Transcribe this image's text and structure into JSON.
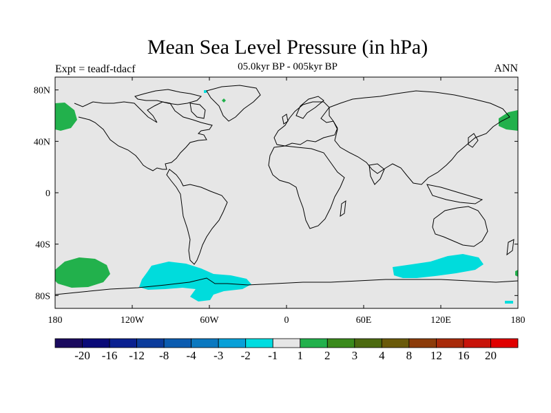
{
  "title": "Mean Sea Level Pressure (in hPa)",
  "subtitle": "05.0kyr BP - 005kyr BP",
  "left_label": "Expt = teadf-tdacf",
  "right_label": "ANN",
  "colors": {
    "land_ocean_background": "#e6e6e6",
    "coastline": "#000000",
    "neg_anomaly": "#00dcdc",
    "pos_anomaly": "#22b14c"
  },
  "axes": {
    "x_ticks": [
      {
        "lon": -180,
        "label": "180"
      },
      {
        "lon": -120,
        "label": "120W"
      },
      {
        "lon": -60,
        "label": "60W"
      },
      {
        "lon": 0,
        "label": "0"
      },
      {
        "lon": 60,
        "label": "60E"
      },
      {
        "lon": 120,
        "label": "120E"
      },
      {
        "lon": 180,
        "label": "180"
      }
    ],
    "y_ticks": [
      {
        "lat": 80,
        "label": "80N"
      },
      {
        "lat": 40,
        "label": "40N"
      },
      {
        "lat": 0,
        "label": "0"
      },
      {
        "lat": -40,
        "label": "40S"
      },
      {
        "lat": -80,
        "label": "80S"
      }
    ],
    "lon_range": [
      -180,
      180
    ],
    "lat_range": [
      -90,
      90
    ]
  },
  "colorbar": {
    "colors": [
      "#1a0a5e",
      "#0a0a78",
      "#0a2090",
      "#0b3c9c",
      "#0b5cb0",
      "#0a78c0",
      "#08a0d8",
      "#00dce0",
      "#e6e6e6",
      "#22b14c",
      "#3a8a1c",
      "#4c6a10",
      "#6a5a0a",
      "#8c3c0a",
      "#a82a0a",
      "#c8140a",
      "#e00000"
    ],
    "labels": [
      "-20",
      "-16",
      "-12",
      "-8",
      "-4",
      "-3",
      "-2",
      "-1",
      "1",
      "2",
      "3",
      "4",
      "8",
      "12",
      "16",
      "20"
    ]
  }
}
